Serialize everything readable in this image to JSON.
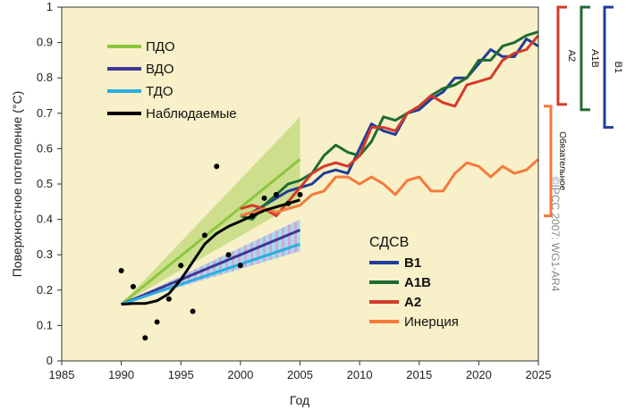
{
  "chart_data": {
    "type": "line",
    "xlabel": "Год",
    "ylabel": "Поверхностное потепление (°С)",
    "xlim": [
      1985,
      2025
    ],
    "ylim": [
      0,
      1
    ],
    "xticks": [
      "1985",
      "1990",
      "1995",
      "2000",
      "2005",
      "2010",
      "2015",
      "2020",
      "2025"
    ],
    "yticks": [
      "0",
      "0.1",
      "0.2",
      "0.3",
      "0.4",
      "0.5",
      "0.6",
      "0.7",
      "0.8",
      "0.9",
      "1"
    ],
    "legend_assessments": [
      {
        "label": "ПДО",
        "color": "#8cc63f"
      },
      {
        "label": "ВДО",
        "color": "#3d3795"
      },
      {
        "label": "ТДО",
        "color": "#29aee0"
      },
      {
        "label": "Наблюдаемые",
        "color": "#000000"
      }
    ],
    "legend_scenarios_title": "СДСВ",
    "legend_scenarios": [
      {
        "label": "B1",
        "color": "#1f3d99"
      },
      {
        "label": "A1B",
        "color": "#1f6b33"
      },
      {
        "label": "A2",
        "color": "#d23a2a"
      },
      {
        "label": "Инерция",
        "color": "#f47a3c"
      }
    ],
    "projections": [
      {
        "name": "ПДО",
        "color": "#8cc63f",
        "x": [
          1990,
          2005
        ],
        "center": [
          0.16,
          0.57
        ],
        "upper": [
          0.16,
          0.69
        ],
        "lower": [
          0.16,
          0.45
        ]
      },
      {
        "name": "ВДО",
        "color": "#3d3795",
        "x": [
          1990,
          2005
        ],
        "center": [
          0.16,
          0.37
        ],
        "upper": [
          0.16,
          0.4
        ],
        "lower": [
          0.16,
          0.31
        ]
      },
      {
        "name": "ТДО",
        "color": "#29aee0",
        "x": [
          1990,
          2005
        ],
        "center": [
          0.16,
          0.33
        ],
        "upper": [
          0.16,
          0.4
        ],
        "lower": [
          0.16,
          0.31
        ]
      }
    ],
    "observed_points": {
      "x": [
        1990,
        1991,
        1992,
        1993,
        1994,
        1995,
        1996,
        1997,
        1998,
        1999,
        2000,
        2001,
        2002,
        2003,
        2004,
        2005
      ],
      "y": [
        0.255,
        0.21,
        0.065,
        0.11,
        0.175,
        0.27,
        0.14,
        0.355,
        0.55,
        0.3,
        0.27,
        0.41,
        0.46,
        0.47,
        0.445,
        0.47
      ]
    },
    "observed_smooth": {
      "x": [
        1990,
        1991,
        1992,
        1993,
        1994,
        1995,
        1996,
        1997,
        1998,
        1999,
        2000,
        2001,
        2002,
        2003,
        2004,
        2005
      ],
      "y": [
        0.16,
        0.162,
        0.162,
        0.17,
        0.19,
        0.23,
        0.28,
        0.33,
        0.36,
        0.38,
        0.395,
        0.41,
        0.425,
        0.435,
        0.445,
        0.455
      ]
    },
    "series": [
      {
        "name": "B1",
        "color": "#1f3d99",
        "x": [
          2000,
          2001,
          2002,
          2003,
          2004,
          2005,
          2006,
          2007,
          2008,
          2009,
          2010,
          2011,
          2012,
          2013,
          2014,
          2015,
          2016,
          2017,
          2018,
          2019,
          2020,
          2021,
          2022,
          2023,
          2024,
          2025
        ],
        "y": [
          0.41,
          0.42,
          0.44,
          0.46,
          0.48,
          0.49,
          0.5,
          0.53,
          0.54,
          0.53,
          0.6,
          0.67,
          0.65,
          0.64,
          0.7,
          0.71,
          0.74,
          0.76,
          0.8,
          0.8,
          0.84,
          0.88,
          0.86,
          0.86,
          0.91,
          0.89
        ]
      },
      {
        "name": "A1B",
        "color": "#1f6b33",
        "x": [
          2000,
          2001,
          2002,
          2003,
          2004,
          2005,
          2006,
          2007,
          2008,
          2009,
          2010,
          2011,
          2012,
          2013,
          2014,
          2015,
          2016,
          2017,
          2018,
          2019,
          2020,
          2021,
          2022,
          2023,
          2024,
          2025
        ],
        "y": [
          0.41,
          0.4,
          0.44,
          0.47,
          0.5,
          0.51,
          0.53,
          0.58,
          0.61,
          0.59,
          0.58,
          0.62,
          0.69,
          0.68,
          0.7,
          0.72,
          0.75,
          0.77,
          0.78,
          0.8,
          0.85,
          0.85,
          0.89,
          0.9,
          0.92,
          0.93
        ]
      },
      {
        "name": "A2",
        "color": "#d23a2a",
        "x": [
          2000,
          2001,
          2002,
          2003,
          2004,
          2005,
          2006,
          2007,
          2008,
          2009,
          2010,
          2011,
          2012,
          2013,
          2014,
          2015,
          2016,
          2017,
          2018,
          2019,
          2020,
          2021,
          2022,
          2023,
          2024,
          2025
        ],
        "y": [
          0.43,
          0.44,
          0.43,
          0.41,
          0.45,
          0.49,
          0.53,
          0.55,
          0.56,
          0.55,
          0.58,
          0.66,
          0.66,
          0.65,
          0.7,
          0.72,
          0.75,
          0.73,
          0.72,
          0.78,
          0.79,
          0.8,
          0.85,
          0.87,
          0.88,
          0.92
        ]
      },
      {
        "name": "Инерция",
        "color": "#f47a3c",
        "x": [
          2000,
          2001,
          2002,
          2003,
          2004,
          2005,
          2006,
          2007,
          2008,
          2009,
          2010,
          2011,
          2012,
          2013,
          2014,
          2015,
          2016,
          2017,
          2018,
          2019,
          2020,
          2021,
          2022,
          2023,
          2024,
          2025
        ],
        "y": [
          0.41,
          0.42,
          0.43,
          0.42,
          0.43,
          0.44,
          0.47,
          0.48,
          0.52,
          0.52,
          0.5,
          0.52,
          0.5,
          0.47,
          0.51,
          0.52,
          0.48,
          0.48,
          0.53,
          0.56,
          0.55,
          0.52,
          0.55,
          0.53,
          0.54,
          0.57
        ]
      }
    ],
    "right_brackets": [
      {
        "label": "A2",
        "color": "#d23a2a",
        "top": 1.0,
        "bottom": 0.725
      },
      {
        "label": "A1B",
        "color": "#1f6b33",
        "top": 1.0,
        "bottom": 0.71
      },
      {
        "label": "B1",
        "color": "#1f3d99",
        "top": 1.0,
        "bottom": 0.66
      },
      {
        "label": "Обязательное",
        "color": "#f47a3c",
        "top": 0.72,
        "bottom": 0.41
      }
    ],
    "copyright": "©IPCC 2007: WG1-AR4",
    "background_color": "#f8f0c8"
  }
}
